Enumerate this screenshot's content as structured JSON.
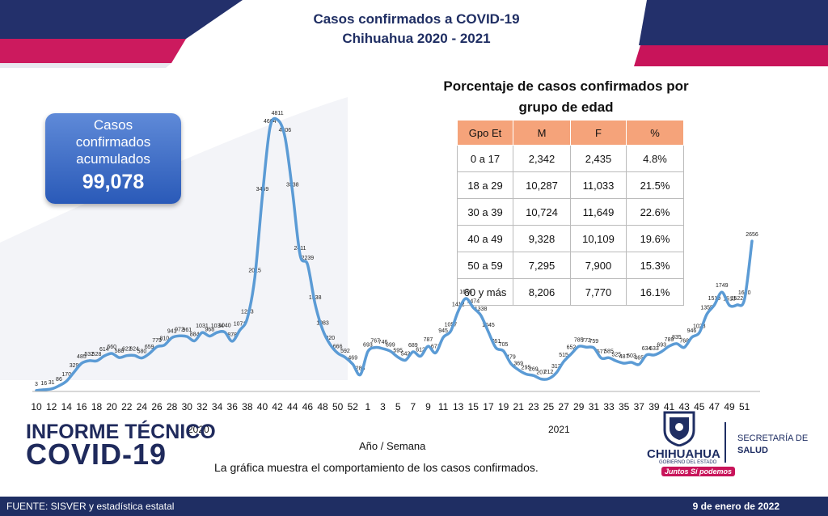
{
  "header": {
    "title_line1": "Casos confirmados a COVID-19",
    "title_line2": "Chihuahua 2020 - 2021"
  },
  "summary_box": {
    "label": "Casos confirmados acumulados",
    "value": "99,078"
  },
  "age_table": {
    "title_line1": "Porcentaje de casos confirmados por",
    "title_line2": "grupo de edad",
    "columns": [
      "Gpo Et",
      "M",
      "F",
      "%"
    ],
    "rows": [
      [
        "0 a 17",
        "2,342",
        "2,435",
        "4.8%"
      ],
      [
        "18 a 29",
        "10,287",
        "11,033",
        "21.5%"
      ],
      [
        "30 a 39",
        "10,724",
        "11,649",
        "22.6%"
      ],
      [
        "40 a 49",
        "9,328",
        "10,109",
        "19.6%"
      ],
      [
        "50 a 59",
        "7,295",
        "7,900",
        "15.3%"
      ],
      [
        "60 y más",
        "8,206",
        "7,770",
        "16.1%"
      ]
    ]
  },
  "chart_data": {
    "type": "line",
    "xlabel": "Año / Semana",
    "year_labels": [
      "2020",
      "2021"
    ],
    "tick_labels": [
      "10",
      "12",
      "14",
      "16",
      "18",
      "20",
      "22",
      "24",
      "26",
      "28",
      "30",
      "32",
      "34",
      "36",
      "38",
      "40",
      "42",
      "44",
      "46",
      "48",
      "50",
      "52",
      "1",
      "3",
      "5",
      "7",
      "9",
      "11",
      "13",
      "15",
      "17",
      "19",
      "21",
      "23",
      "25",
      "27",
      "29",
      "31",
      "33",
      "35",
      "37",
      "39",
      "41",
      "43",
      "45",
      "47",
      "49",
      "51"
    ],
    "series": [
      {
        "color": "#5b9bd5",
        "values": [
          3,
          16,
          31,
          86,
          170,
          329,
          485,
          532,
          528,
          614,
          660,
          588,
          622,
          624,
          580,
          659,
          779,
          810,
          941,
          972,
          961,
          884,
          1031,
          968,
          1034,
          1040,
          878,
          1071,
          1283,
          2015,
          3459,
          4664,
          4811,
          4506,
          3538,
          2411,
          2239,
          1538,
          1083,
          820,
          666,
          592,
          469,
          283,
          693,
          767,
          746,
          699,
          595,
          542,
          689,
          612,
          787,
          671,
          945,
          1057,
          1412,
          1636,
          1474,
          1338,
          1045,
          761,
          705,
          479,
          369,
          295,
          269,
          207,
          212,
          313,
          515,
          652,
          785,
          772,
          759,
          577,
          585,
          525,
          487,
          503,
          465,
          634,
          633,
          693,
          789,
          835,
          768,
          946,
          1028,
          1355,
          1519,
          1749,
          1513,
          1522,
          1620,
          2656
        ]
      }
    ]
  },
  "branding": {
    "informe_line1": "INFORME TÉCNICO",
    "informe_line2": "COVID-19",
    "logo_name": "CHIHUAHUA",
    "logo_sub": "GOBIERNO DEL ESTADO",
    "slogan": "Juntos Sí podemos",
    "secretaria_line1": "SECRETARÍA DE",
    "secretaria_line2": "SALUD"
  },
  "description": "La gráfica muestra el comportamiento de los casos confirmados.",
  "footer": {
    "source": "FUENTE: SISVER y estadística estatal",
    "date": "9 de enero de 2022"
  },
  "colors": {
    "navy": "#1f2e63",
    "magenta": "#c8145a",
    "line": "#5b9bd5",
    "table_header": "#f5a37a"
  }
}
